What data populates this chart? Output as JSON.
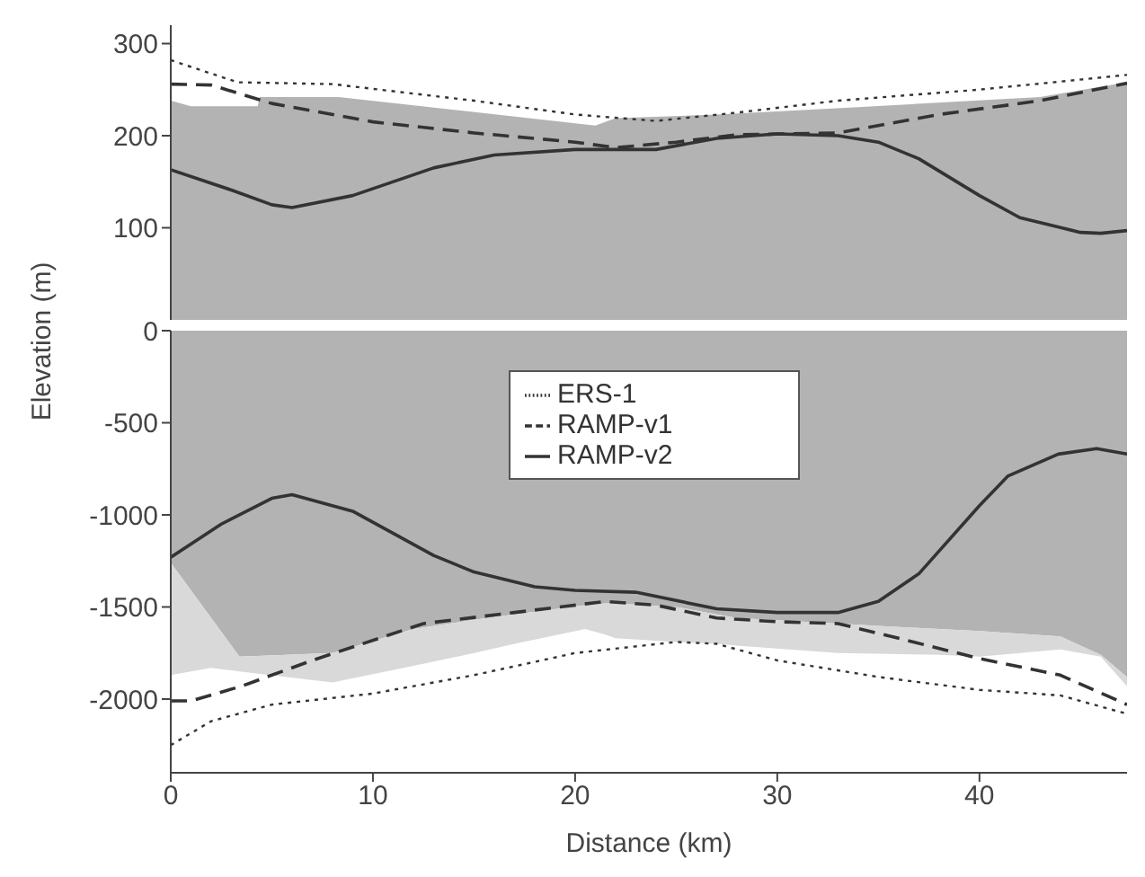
{
  "chart_data": [
    {
      "type": "line",
      "xlim": [
        0,
        47.3
      ],
      "xticks": [
        0,
        10,
        20,
        30,
        40
      ],
      "ylim": [
        0,
        320
      ],
      "yticks": [
        100,
        200,
        300
      ],
      "tick_labels": "y",
      "marker": "none",
      "legend": false,
      "series": [
        {
          "type": "area",
          "color": "#b3b3b3",
          "x": [
            0,
            1,
            4.3,
            4.4,
            8.3,
            21,
            22,
            27,
            34,
            43,
            47.3
          ],
          "values": [
            238,
            232,
            232,
            242,
            242,
            211,
            219,
            223,
            231,
            242,
            258
          ]
        },
        {
          "color": "#333333",
          "line_style": "dotted",
          "x": [
            0,
            3.3,
            8,
            15,
            20,
            24,
            28,
            33,
            40,
            47.3
          ],
          "values": [
            282,
            258,
            256,
            238,
            223,
            216,
            225,
            238,
            250,
            266
          ]
        },
        {
          "color": "#333333",
          "line_style": "dashed",
          "x": [
            0,
            2,
            5,
            10,
            15,
            20,
            22,
            25,
            28,
            33,
            38,
            43,
            47.3
          ],
          "values": [
            256,
            255,
            235,
            215,
            203,
            193,
            187,
            193,
            201,
            203,
            223,
            238,
            257
          ]
        },
        {
          "color": "#333333",
          "line_style": "solid",
          "x": [
            0,
            3,
            5,
            6,
            9,
            13,
            16,
            20,
            24,
            27,
            30,
            33,
            35,
            37,
            40,
            42,
            45,
            46,
            47.3
          ],
          "values": [
            163,
            141,
            125,
            122,
            135,
            165,
            179,
            185,
            185,
            197,
            202,
            200,
            193,
            175,
            135,
            111,
            95,
            94,
            97
          ]
        }
      ]
    },
    {
      "type": "line",
      "xlabel": "Distance (km)",
      "ylabel": "Elevation (m)",
      "xlim": [
        0,
        47.3
      ],
      "xticks": [
        0,
        10,
        20,
        30,
        40
      ],
      "ylim": [
        -2400,
        0
      ],
      "yticks": [
        -2000,
        -1500,
        -1000,
        -500,
        0
      ],
      "marker": "none",
      "legend": "top",
      "stacked": true,
      "series": [
        {
          "type": "area",
          "color": "#b3b3b3",
          "x": [
            0,
            2,
            3.4,
            8,
            12,
            15,
            17,
            20.5,
            21.5,
            22,
            25,
            27,
            28,
            33,
            38,
            40,
            44,
            46,
            47.3
          ],
          "values": [
            -1260,
            -1560,
            -1770,
            -1750,
            -1620,
            -1570,
            -1540,
            -1490,
            -1480,
            -1480,
            -1500,
            -1540,
            -1560,
            -1590,
            -1620,
            -1630,
            -1660,
            -1760,
            -1880
          ]
        },
        {
          "type": "area",
          "color": "#d9d9d9",
          "x": [
            0,
            2,
            3.4,
            8,
            12,
            15,
            17,
            20.5,
            21.5,
            22,
            25,
            27,
            28,
            33,
            38,
            40,
            44,
            46,
            47.3
          ],
          "values": [
            -610,
            -270,
            -80,
            -160,
            -200,
            -180,
            -160,
            -130,
            -170,
            -190,
            -190,
            -160,
            -150,
            -160,
            -140,
            -140,
            -70,
            -10,
            -50
          ]
        },
        {
          "name": "ERS-1",
          "color": "#333333",
          "line_style": "dotted",
          "x": [
            0,
            2,
            5,
            10,
            15,
            20,
            25,
            27,
            30,
            35,
            40,
            44,
            47.3
          ],
          "values": [
            -2250,
            -2120,
            -2030,
            -1970,
            -1870,
            -1750,
            -1690,
            -1700,
            -1790,
            -1880,
            -1950,
            -1980,
            -2080
          ]
        },
        {
          "name": "RAMP-v1",
          "color": "#333333",
          "line_style": "dashed",
          "x": [
            0,
            1,
            3.5,
            7,
            12.5,
            17,
            21.5,
            24,
            27,
            30,
            33,
            36,
            40,
            44,
            47.3
          ],
          "values": [
            -2010,
            -2010,
            -1930,
            -1790,
            -1590,
            -1530,
            -1470,
            -1490,
            -1560,
            -1580,
            -1590,
            -1670,
            -1780,
            -1870,
            -2030
          ]
        },
        {
          "name": "RAMP-v2",
          "color": "#333333",
          "line_style": "solid",
          "x": [
            0,
            2.5,
            5,
            6,
            9,
            13,
            15,
            18,
            20,
            23,
            27,
            30,
            33,
            35,
            37,
            40,
            41.4,
            43.9,
            45.8,
            47.3
          ],
          "values": [
            -1230,
            -1050,
            -910,
            -890,
            -980,
            -1220,
            -1310,
            -1390,
            -1410,
            -1420,
            -1510,
            -1530,
            -1530,
            -1470,
            -1320,
            -950,
            -790,
            -670,
            -640,
            -670
          ]
        }
      ]
    }
  ]
}
